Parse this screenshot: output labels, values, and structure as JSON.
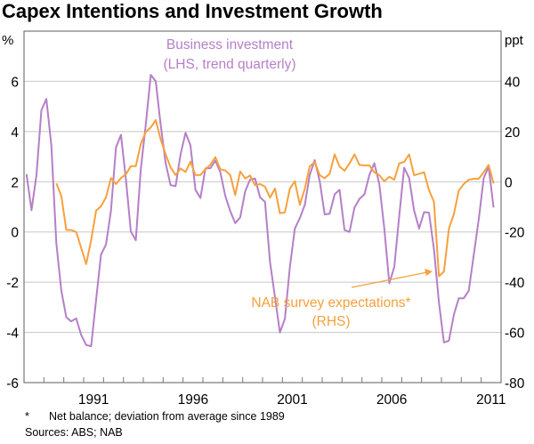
{
  "chart_data": {
    "type": "line",
    "title": "Capex Intentions and Investment Growth",
    "x_start": 1988.125,
    "x_step": 0.25,
    "xlim": [
      1988,
      2012
    ],
    "x_ticks": [
      1991,
      1996,
      2001,
      2006,
      2011
    ],
    "left_axis": {
      "unit": "%",
      "ylim": [
        -6,
        8
      ],
      "ticks": [
        6,
        4,
        2,
        0,
        -2,
        -4,
        -6
      ]
    },
    "right_axis": {
      "unit": "ppt",
      "ylim": [
        -80,
        60
      ],
      "ticks": [
        40,
        20,
        0,
        -20,
        -40,
        -60,
        -80
      ]
    },
    "grid": true,
    "series": [
      {
        "name": "Business investment",
        "sublabel": "(LHS, trend quarterly)",
        "axis": "left",
        "color": "#b57fc8",
        "start_index": 0,
        "values": [
          2.3,
          0.87,
          2.27,
          4.85,
          5.3,
          3.45,
          -0.45,
          -2.34,
          -3.4,
          -3.56,
          -3.44,
          -4.1,
          -4.5,
          -4.55,
          -2.7,
          -0.9,
          -0.5,
          0.85,
          3.36,
          3.87,
          2.1,
          0.02,
          -0.33,
          2.5,
          4.28,
          6.26,
          6.0,
          4.28,
          2.74,
          1.86,
          1.83,
          3.1,
          3.95,
          3.45,
          1.68,
          1.35,
          2.53,
          2.54,
          2.84,
          2.39,
          1.44,
          0.83,
          0.35,
          0.58,
          1.62,
          2.09,
          2.13,
          1.38,
          1.2,
          -1.2,
          -2.6,
          -4.0,
          -3.46,
          -1.4,
          0.14,
          0.55,
          1.08,
          2.27,
          2.86,
          2.03,
          0.7,
          0.73,
          1.5,
          1.68,
          0.08,
          0,
          0.97,
          1.32,
          1.5,
          2.27,
          2.74,
          1.91,
          0.14,
          -2.04,
          -1.4,
          0.61,
          2.56,
          2.15,
          0.85,
          0.14,
          0.79,
          0.77,
          -0.69,
          -2.81,
          -4.4,
          -4.33,
          -3.29,
          -2.64,
          -2.64,
          -2.34,
          -0.92,
          0.5,
          2.15,
          2.6,
          0.97
        ]
      },
      {
        "name": "NAB survey expectations*",
        "sublabel": "(RHS)",
        "axis": "right",
        "color": "#f7a03c",
        "start_index": 6,
        "values": [
          -0.6,
          -5.6,
          -19.2,
          -19.2,
          -20,
          -26.3,
          -32.8,
          -23.3,
          -11.5,
          -9.7,
          -6.2,
          1.5,
          -0.9,
          1.5,
          3,
          6.2,
          6.2,
          15.1,
          19.8,
          21.6,
          24.6,
          16.9,
          11,
          5.7,
          2.7,
          5.3,
          3.9,
          8,
          2.7,
          2.7,
          5,
          6.8,
          9.8,
          5,
          4.5,
          2.7,
          -5.3,
          4.1,
          1.3,
          2.5,
          -1.4,
          -0.9,
          -2,
          -6.3,
          -2.7,
          -12.5,
          -12.2,
          -2.7,
          0.2,
          -9.2,
          -2.7,
          6.1,
          7.9,
          2.6,
          1.4,
          3.2,
          10.9,
          6.1,
          4.4,
          7.3,
          10.9,
          6.7,
          6.5,
          6.5,
          3.8,
          2.6,
          0.2,
          2,
          0.8,
          7.3,
          7.9,
          10.9,
          2.6,
          3.2,
          3.8,
          -3.3,
          -8,
          -37.6,
          -35.8,
          -18.7,
          -12.8,
          -3.5,
          -0.9,
          0.8,
          1.2,
          1.2,
          3.8,
          6.7,
          -0.7
        ]
      }
    ],
    "footnotes": {
      "marker": "*",
      "note": "Net balance; deviation from average since 1989",
      "sources": "Sources: ABS; NAB"
    }
  }
}
